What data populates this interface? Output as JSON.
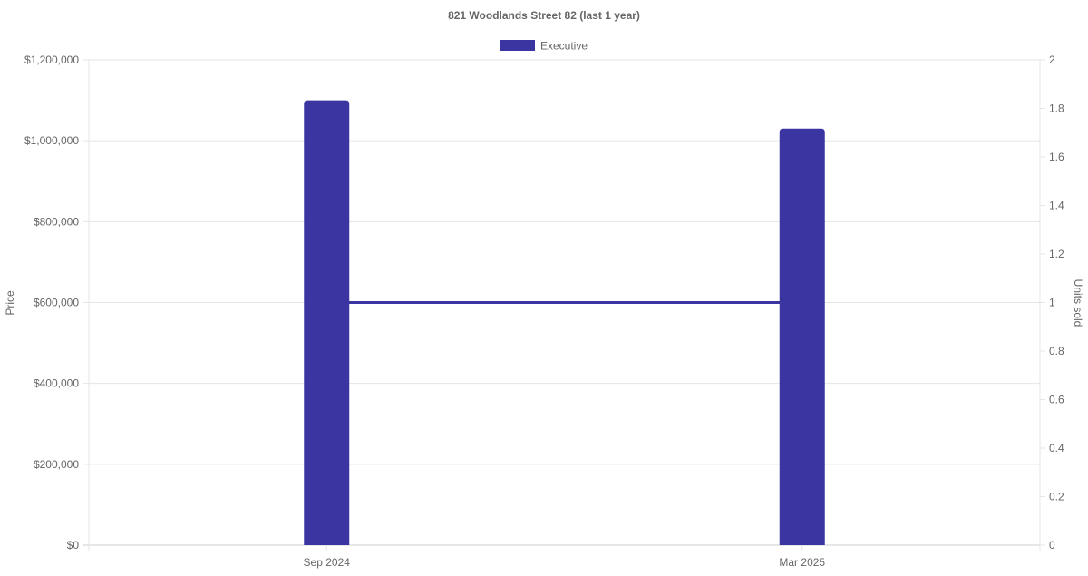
{
  "chart_data": {
    "type": "bar",
    "title": "821 Woodlands Street 82 (last 1 year)",
    "categories": [
      "Sep 2024",
      "Mar 2025"
    ],
    "series": [
      {
        "name": "Executive",
        "type": "bar",
        "axis": "left",
        "values": [
          1100000,
          1030000
        ],
        "color": "#3a35a0"
      },
      {
        "type": "line",
        "axis": "right",
        "values": [
          1,
          1
        ],
        "color": "#3a35a0"
      }
    ],
    "ylabel": "Price",
    "y2label": "Units sold",
    "ylim": [
      0,
      1200000
    ],
    "y2lim": [
      0,
      2
    ],
    "yticks": [
      "$0",
      "$200,000",
      "$400,000",
      "$600,000",
      "$800,000",
      "$1,000,000",
      "$1,200,000"
    ],
    "y2ticks": [
      "0",
      "0.2",
      "0.4",
      "0.6",
      "0.8",
      "1",
      "1.2",
      "1.4",
      "1.6",
      "1.8",
      "2"
    ],
    "grid": true,
    "legend": "top",
    "legend_entries": [
      "Executive"
    ]
  }
}
